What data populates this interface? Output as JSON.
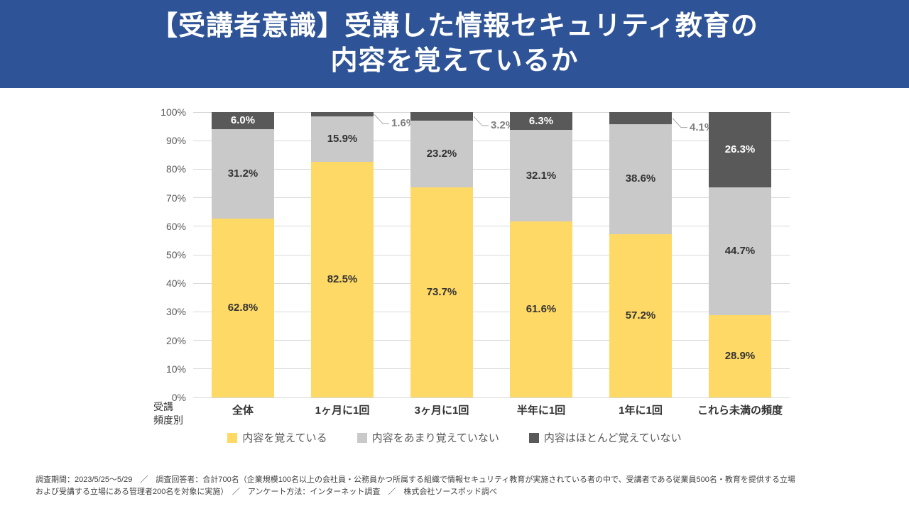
{
  "header": {
    "title_line1": "【受講者意識】受講した情報セキュリティ教育の",
    "title_line2": "内容を覚えているか",
    "background": "#2E5396"
  },
  "chart_data": {
    "type": "bar",
    "stacked": true,
    "percent": true,
    "title": "【受講者意識】受講した情報セキュリティ教育の内容を覚えているか",
    "xlabel": "受講頻度別",
    "ylabel": "",
    "ylim": [
      0,
      100
    ],
    "grid": true,
    "legend_position": "bottom",
    "axis_title": "受講\n頻度別",
    "categories": [
      "全体",
      "1ヶ月に1回",
      "3ヶ月に1回",
      "半年に1回",
      "1年に1回",
      "これら未満の頻度"
    ],
    "y_ticks": [
      "0%",
      "10%",
      "20%",
      "30%",
      "40%",
      "50%",
      "60%",
      "70%",
      "80%",
      "90%",
      "100%"
    ],
    "outside_label_color": "#7F7F7F",
    "series": [
      {
        "name": "内容を覚えている",
        "color": "#FFD966",
        "label_color": "#333333",
        "values": [
          62.8,
          82.5,
          73.7,
          61.6,
          57.2,
          28.9
        ]
      },
      {
        "name": "内容をあまり覚えていない",
        "color": "#C9C9C9",
        "label_color": "#333333",
        "values": [
          31.2,
          15.9,
          23.2,
          32.1,
          38.6,
          44.7
        ]
      },
      {
        "name": "内容はほとんど覚えていない",
        "color": "#595959",
        "label_color": "#FFFFFF",
        "values": [
          6.0,
          1.6,
          3.2,
          6.3,
          4.1,
          26.3
        ]
      }
    ]
  },
  "footer": {
    "line1": "調査期間：2023/5/25～5/29　／　調査回答者：合計700名（企業規模100名以上の会社員・公務員かつ所属する組織で情報セキュリティ教育が実施されている者の中で、受講者である従業員500名・教育を提供する立場",
    "line2": "および受講する立場にある管理者200名を対象に実施）　／　アンケート方法：インターネット調査　／　株式会社ソースポッド調べ"
  }
}
